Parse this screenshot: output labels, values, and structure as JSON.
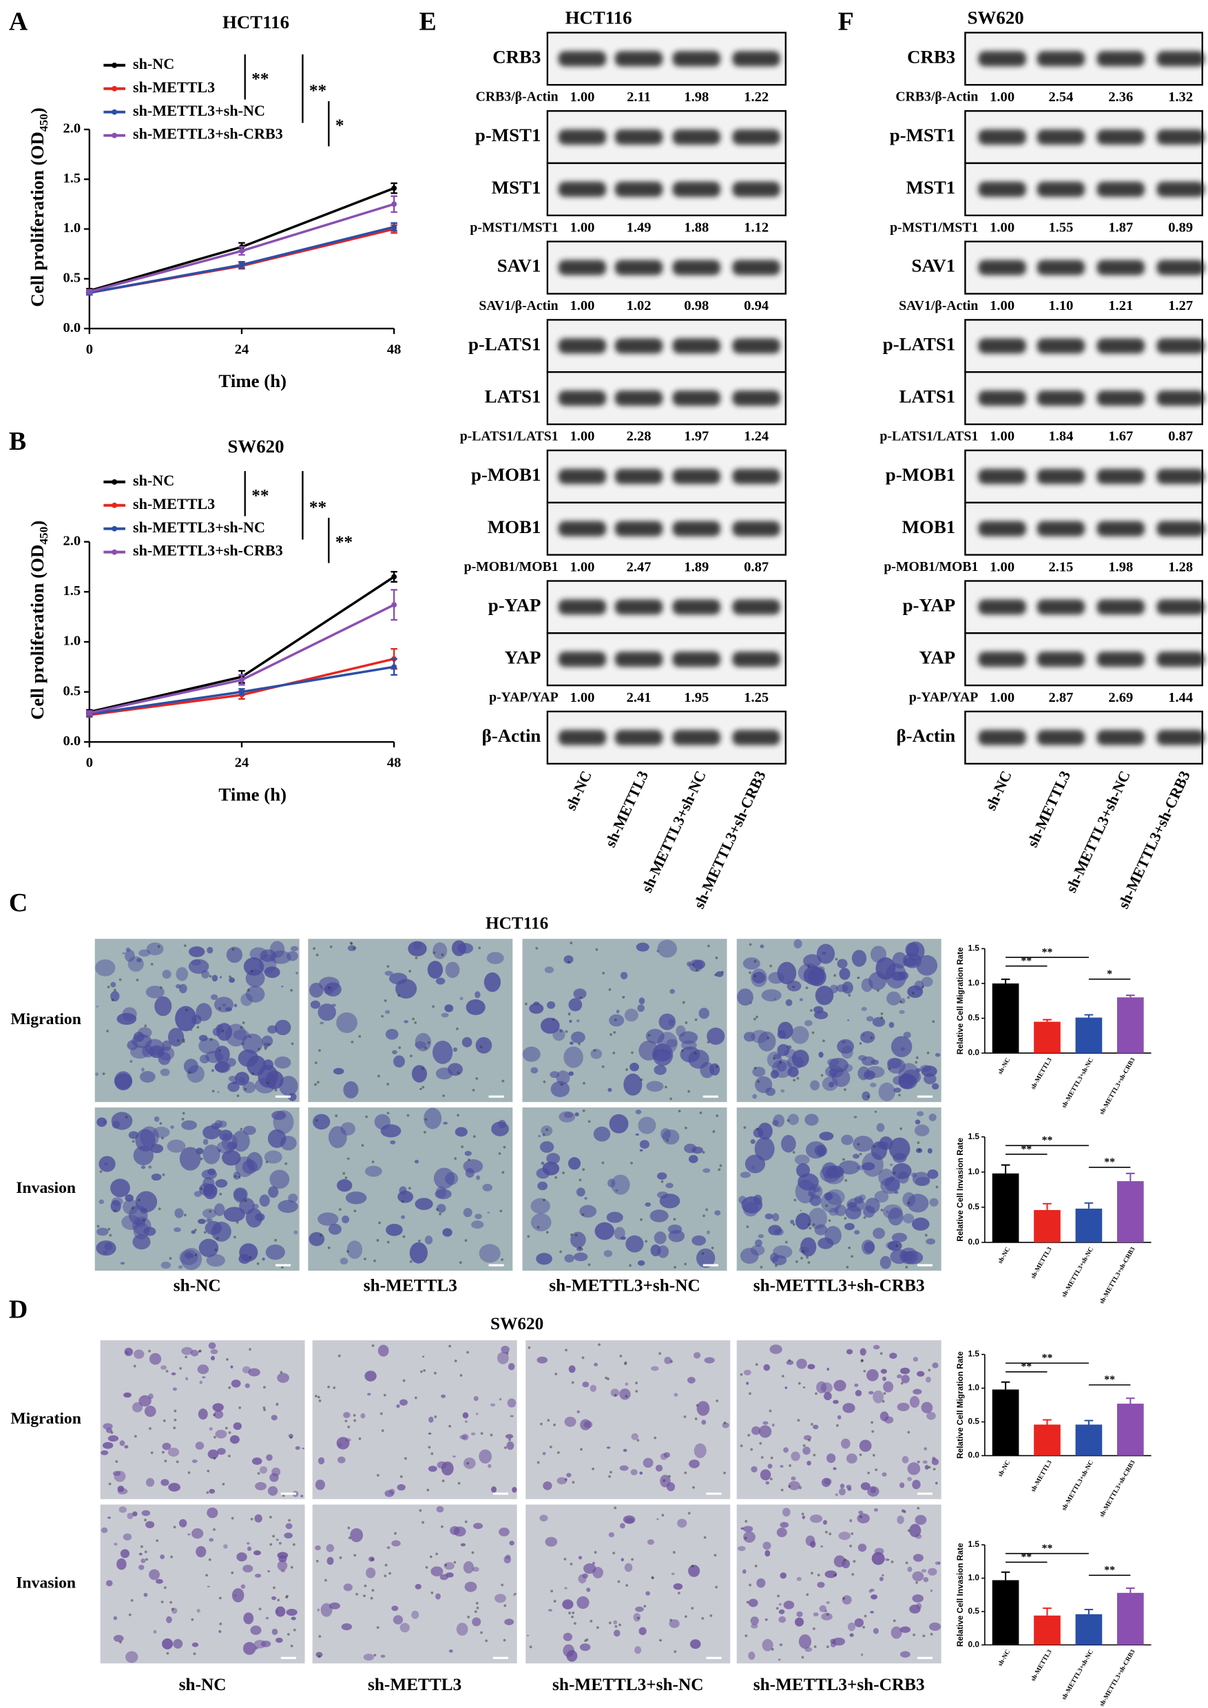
{
  "panels": [
    "A",
    "B",
    "C",
    "D",
    "E",
    "F"
  ],
  "chart_data": [
    {
      "type": "line",
      "title": "HCT116",
      "x": [
        0,
        24,
        48
      ],
      "xlim": [
        0,
        48
      ],
      "xticks": [
        0,
        24,
        48
      ],
      "ylim": [
        0,
        2
      ],
      "yticks": [
        {
          "value": 0,
          "label": "0.0"
        },
        {
          "value": 0.5,
          "label": "0.5"
        },
        {
          "value": 1,
          "label": "1.0"
        },
        {
          "value": 1.5,
          "label": "1.5"
        },
        {
          "value": 2,
          "label": "2.0"
        }
      ],
      "x_label": "Time (h)",
      "y_label": {
        "text": "Cell proliferation (OD",
        "sub": "450",
        "end": ")"
      },
      "series": [
        {
          "name": "sh-NC",
          "color": "#000000",
          "values": [
            0.38,
            0.82,
            1.41
          ],
          "errors": [
            0.02,
            0.04,
            0.05
          ]
        },
        {
          "name": "sh-METTL3",
          "color": "#e8251f",
          "values": [
            0.36,
            0.63,
            1.0
          ],
          "errors": [
            0.02,
            0.03,
            0.04
          ]
        },
        {
          "name": "sh-METTL3+sh-NC",
          "color": "#2a4fa8",
          "values": [
            0.36,
            0.64,
            1.02
          ],
          "errors": [
            0.02,
            0.03,
            0.04
          ]
        },
        {
          "name": "sh-METTL3+sh-CRB3",
          "color": "#8a4fb0",
          "values": [
            0.37,
            0.78,
            1.25
          ],
          "errors": [
            0.02,
            0.04,
            0.08
          ]
        }
      ],
      "annotations": [
        "**",
        "**",
        "*"
      ]
    },
    {
      "type": "line",
      "title": "SW620",
      "x": [
        0,
        24,
        48
      ],
      "xlim": [
        0,
        48
      ],
      "xticks": [
        0,
        24,
        48
      ],
      "ylim": [
        0,
        2
      ],
      "yticks": [
        {
          "value": 0,
          "label": "0.0"
        },
        {
          "value": 0.5,
          "label": "0.5"
        },
        {
          "value": 1,
          "label": "1.0"
        },
        {
          "value": 1.5,
          "label": "1.5"
        },
        {
          "value": 2,
          "label": "2.0"
        }
      ],
      "x_label": "Time (h)",
      "y_label": {
        "text": "Cell proliferation (OD",
        "sub": "450",
        "end": ")"
      },
      "series": [
        {
          "name": "sh-NC",
          "color": "#000000",
          "values": [
            0.3,
            0.65,
            1.65
          ],
          "errors": [
            0.02,
            0.06,
            0.05
          ]
        },
        {
          "name": "sh-METTL3",
          "color": "#e8251f",
          "values": [
            0.27,
            0.47,
            0.83
          ],
          "errors": [
            0.02,
            0.04,
            0.1
          ]
        },
        {
          "name": "sh-METTL3+sh-NC",
          "color": "#2a4fa8",
          "values": [
            0.28,
            0.5,
            0.75
          ],
          "errors": [
            0.02,
            0.03,
            0.08
          ]
        },
        {
          "name": "sh-METTL3+sh-CRB3",
          "color": "#8a4fb0",
          "values": [
            0.29,
            0.62,
            1.37
          ],
          "errors": [
            0.02,
            0.05,
            0.15
          ]
        }
      ],
      "annotations": [
        "**",
        "**",
        "**"
      ]
    },
    {
      "type": "bar",
      "y_label": "Relative Cell Migration Rate",
      "categories": [
        "sh-NC",
        "sh-METTL3",
        "sh-METTL3+sh-NC",
        "sh-METTL3+sh-CRB3"
      ],
      "values": [
        1.0,
        0.45,
        0.51,
        0.8
      ],
      "errors": [
        0.06,
        0.03,
        0.04,
        0.03
      ],
      "colors": [
        "#000000",
        "#e8251f",
        "#2a4fa8",
        "#8a4fb0"
      ],
      "ylim": [
        0,
        1.5
      ],
      "yticks": [
        {
          "value": 0,
          "label": "0.0"
        },
        {
          "value": 0.5,
          "label": "0.5"
        },
        {
          "value": 1,
          "label": "1.0"
        },
        {
          "value": 1.5,
          "label": "1.5"
        }
      ],
      "annotations": [
        "**",
        "**",
        "*"
      ]
    },
    {
      "type": "bar",
      "y_label": "Relative Cell Invasion Rate",
      "categories": [
        "sh-NC",
        "sh-METTL3",
        "sh-METTL3+sh-NC",
        "sh-METTL3+sh-CRB3"
      ],
      "values": [
        0.98,
        0.46,
        0.48,
        0.87
      ],
      "errors": [
        0.12,
        0.09,
        0.08,
        0.11
      ],
      "colors": [
        "#000000",
        "#e8251f",
        "#2a4fa8",
        "#8a4fb0"
      ],
      "ylim": [
        0,
        1.5
      ],
      "yticks": [
        {
          "value": 0,
          "label": "0.0"
        },
        {
          "value": 0.5,
          "label": "0.5"
        },
        {
          "value": 1,
          "label": "1.0"
        },
        {
          "value": 1.5,
          "label": "1.5"
        }
      ],
      "annotations": [
        "**",
        "**",
        "**"
      ]
    },
    {
      "type": "bar",
      "y_label": "Relative Cell Migration Rate",
      "categories": [
        "sh-NC",
        "sh-METTL3",
        "sh-METTL3+sh-NC",
        "sh-METTL3+sh-CRB3"
      ],
      "values": [
        0.98,
        0.46,
        0.46,
        0.77
      ],
      "errors": [
        0.11,
        0.07,
        0.06,
        0.08
      ],
      "colors": [
        "#000000",
        "#e8251f",
        "#2a4fa8",
        "#8a4fb0"
      ],
      "ylim": [
        0,
        1.5
      ],
      "yticks": [
        {
          "value": 0,
          "label": "0.0"
        },
        {
          "value": 0.5,
          "label": "0.5"
        },
        {
          "value": 1,
          "label": "1.0"
        },
        {
          "value": 1.5,
          "label": "1.5"
        }
      ],
      "annotations": [
        "**",
        "**",
        "**"
      ]
    },
    {
      "type": "bar",
      "y_label": "Relative Cell Invasion Rate",
      "categories": [
        "sh-NC",
        "sh-METTL3",
        "sh-METTL3+sh-NC",
        "sh-METTL3+sh-CRB3"
      ],
      "values": [
        0.97,
        0.44,
        0.46,
        0.78
      ],
      "errors": [
        0.12,
        0.11,
        0.07,
        0.07
      ],
      "colors": [
        "#000000",
        "#e8251f",
        "#2a4fa8",
        "#8a4fb0"
      ],
      "ylim": [
        0,
        1.5
      ],
      "yticks": [
        {
          "value": 0,
          "label": "0.0"
        },
        {
          "value": 0.5,
          "label": "0.5"
        },
        {
          "value": 1,
          "label": "1.0"
        },
        {
          "value": 1.5,
          "label": "1.5"
        }
      ],
      "annotations": [
        "**",
        "**",
        "**"
      ]
    }
  ],
  "blots": [
    {
      "title": "HCT116",
      "lanes": [
        "sh-NC",
        "sh-METTL3",
        "sh-METTL3+sh-NC",
        "sh-METTL3+sh-CRB3"
      ],
      "rows": [
        {
          "label": "CRB3"
        },
        {
          "label": "CRB3/β-Actin",
          "values": [
            "1.00",
            "2.11",
            "1.98",
            "1.22"
          ]
        },
        {
          "label": "p-MST1"
        },
        {
          "label": "MST1"
        },
        {
          "label": "p-MST1/MST1",
          "values": [
            "1.00",
            "1.49",
            "1.88",
            "1.12"
          ]
        },
        {
          "label": "SAV1"
        },
        {
          "label": "SAV1/β-Actin",
          "values": [
            "1.00",
            "1.02",
            "0.98",
            "0.94"
          ]
        },
        {
          "label": "p-LATS1"
        },
        {
          "label": "LATS1"
        },
        {
          "label": "p-LATS1/LATS1",
          "values": [
            "1.00",
            "2.28",
            "1.97",
            "1.24"
          ]
        },
        {
          "label": "p-MOB1"
        },
        {
          "label": "MOB1"
        },
        {
          "label": "p-MOB1/MOB1",
          "values": [
            "1.00",
            "2.47",
            "1.89",
            "0.87"
          ]
        },
        {
          "label": "p-YAP"
        },
        {
          "label": "YAP"
        },
        {
          "label": "p-YAP/YAP",
          "values": [
            "1.00",
            "2.41",
            "1.95",
            "1.25"
          ]
        },
        {
          "label": "β-Actin"
        }
      ]
    },
    {
      "title": "SW620",
      "lanes": [
        "sh-NC",
        "sh-METTL3",
        "sh-METTL3+sh-NC",
        "sh-METTL3+sh-CRB3"
      ],
      "rows": [
        {
          "label": "CRB3"
        },
        {
          "label": "CRB3/β-Actin",
          "values": [
            "1.00",
            "2.54",
            "2.36",
            "1.32"
          ]
        },
        {
          "label": "p-MST1"
        },
        {
          "label": "MST1"
        },
        {
          "label": "p-MST1/MST1",
          "values": [
            "1.00",
            "1.55",
            "1.87",
            "0.89"
          ]
        },
        {
          "label": "SAV1"
        },
        {
          "label": "SAV1/β-Actin",
          "values": [
            "1.00",
            "1.10",
            "1.21",
            "1.27"
          ]
        },
        {
          "label": "p-LATS1"
        },
        {
          "label": "LATS1"
        },
        {
          "label": "p-LATS1/LATS1",
          "values": [
            "1.00",
            "1.84",
            "1.67",
            "0.87"
          ]
        },
        {
          "label": "p-MOB1"
        },
        {
          "label": "MOB1"
        },
        {
          "label": "p-MOB1/MOB1",
          "values": [
            "1.00",
            "2.15",
            "1.98",
            "1.28"
          ]
        },
        {
          "label": "p-YAP"
        },
        {
          "label": "YAP"
        },
        {
          "label": "p-YAP/YAP",
          "values": [
            "1.00",
            "2.87",
            "2.69",
            "1.44"
          ]
        },
        {
          "label": "β-Actin"
        }
      ]
    }
  ],
  "micrographs": [
    {
      "title": "HCT116",
      "rows": [
        "Migration",
        "Invasion"
      ],
      "columns": [
        "sh-NC",
        "sh-METTL3",
        "sh-METTL3+sh-NC",
        "sh-METTL3+sh-CRB3"
      ]
    },
    {
      "title": "SW620",
      "rows": [
        "Migration",
        "Invasion"
      ],
      "columns": [
        "sh-NC",
        "sh-METTL3",
        "sh-METTL3+sh-NC",
        "sh-METTL3+sh-CRB3"
      ]
    }
  ]
}
